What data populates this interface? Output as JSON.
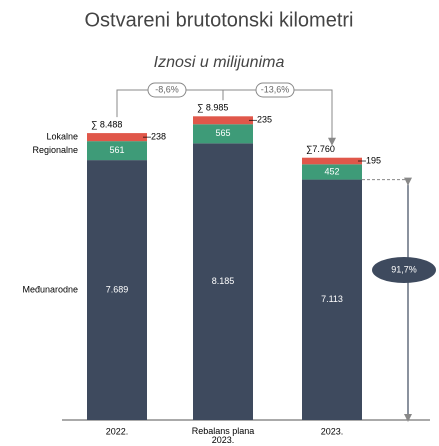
{
  "chart_data": {
    "type": "stacked-bar",
    "title": "Ostvareni brutotonski kilometri",
    "subtitle": "Iznosi u milijunima",
    "categories": [
      "2022.",
      "Rebalans plana 2023.",
      "2023."
    ],
    "series": [
      {
        "name": "Međunarodne",
        "color": "#3e4a5e",
        "values": [
          7689,
          8185,
          7113
        ],
        "value_labels": [
          "7.689",
          "8.185",
          "7.113"
        ]
      },
      {
        "name": "Regionalne",
        "color": "#3e9b78",
        "values": [
          561,
          565,
          452
        ],
        "value_labels": [
          "561",
          "565",
          "452"
        ]
      },
      {
        "name": "Lokalne",
        "color": "#e0574a",
        "values": [
          238,
          235,
          195
        ],
        "value_labels": [
          "238",
          "235",
          "195"
        ]
      }
    ],
    "totals": {
      "values": [
        8488,
        8985,
        7760
      ],
      "value_labels": [
        "∑ 8.488",
        "∑ 8.985",
        "∑7.760"
      ]
    },
    "annotations": [
      "-8,6%",
      "-13,6%",
      "91,7%"
    ]
  }
}
